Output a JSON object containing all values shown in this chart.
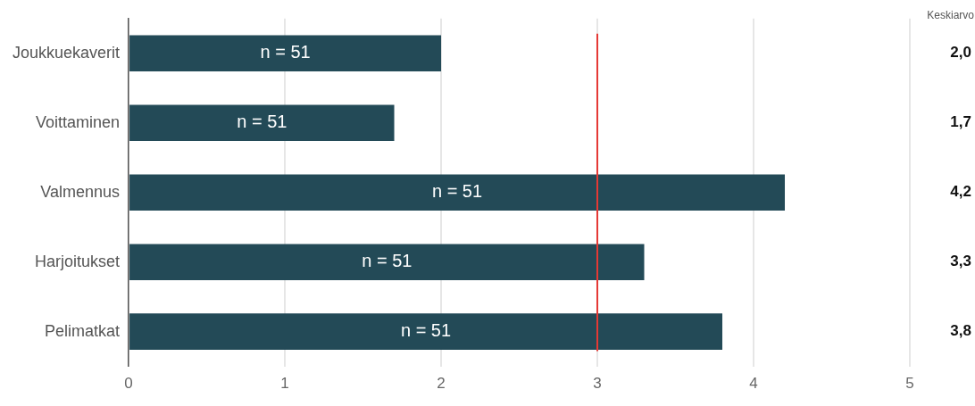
{
  "chart_data": {
    "type": "bar",
    "orientation": "horizontal",
    "categories": [
      "Joukkuekaverit",
      "Voittaminen",
      "Valmennus",
      "Harjoitukset",
      "Pelimatkat"
    ],
    "values": [
      2.0,
      1.7,
      4.2,
      3.3,
      3.8
    ],
    "value_labels": [
      "2,0",
      "1,7",
      "4,2",
      "3,3",
      "3,8"
    ],
    "color": "#234a57",
    "xlim": [
      0,
      5
    ],
    "xticks": [
      0,
      1,
      2,
      3,
      4,
      5
    ],
    "grid": "x",
    "legend": false,
    "ref_lines": [
      {
        "axis": "x",
        "value": 3,
        "color": "#e53935"
      }
    ],
    "annotations": [
      "Keskiarvo",
      "n = 51",
      "n = 51",
      "n = 51",
      "n = 51",
      "n = 51"
    ]
  }
}
